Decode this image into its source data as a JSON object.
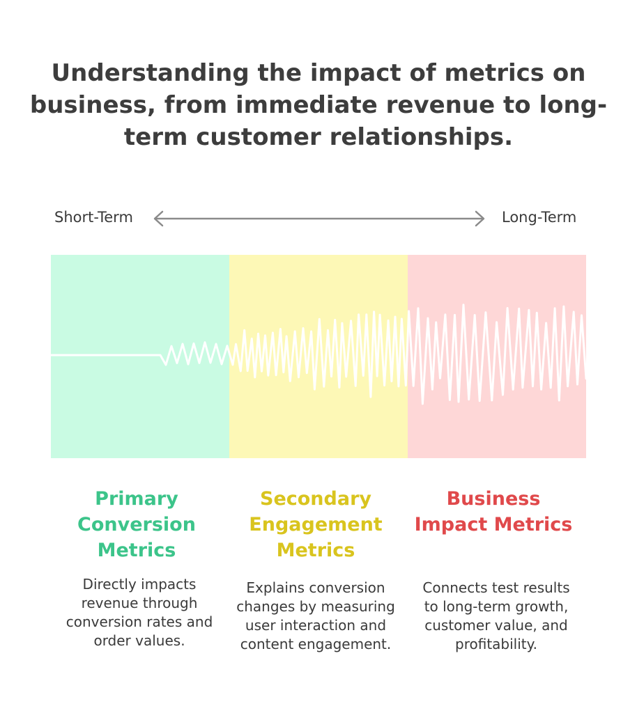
{
  "title": "Understanding the impact of metrics on business, from immediate revenue to long-term customer relationships.",
  "axis": {
    "left_label": "Short-Term",
    "right_label": "Long-Term"
  },
  "columns": [
    {
      "title": "Primary Conversion Metrics",
      "description": "Directly impacts revenue through conversion rates and order values.",
      "band_color": "#c9fbe3",
      "title_color": "#3cc48a"
    },
    {
      "title": "Secondary Engagement Metrics",
      "description": "Explains conversion changes by measuring user interaction and content engagement.",
      "band_color": "#fdf8b6",
      "title_color": "#d9c41e"
    },
    {
      "title": "Business Impact Metrics",
      "description": "Connects test results to long-term growth, customer value, and profitability.",
      "band_color": "#fed7d7",
      "title_color": "#e0494b"
    }
  ],
  "icons": {
    "axis_arrow": "double-headed-arrow-icon",
    "waveform": "signal-wave-icon"
  }
}
